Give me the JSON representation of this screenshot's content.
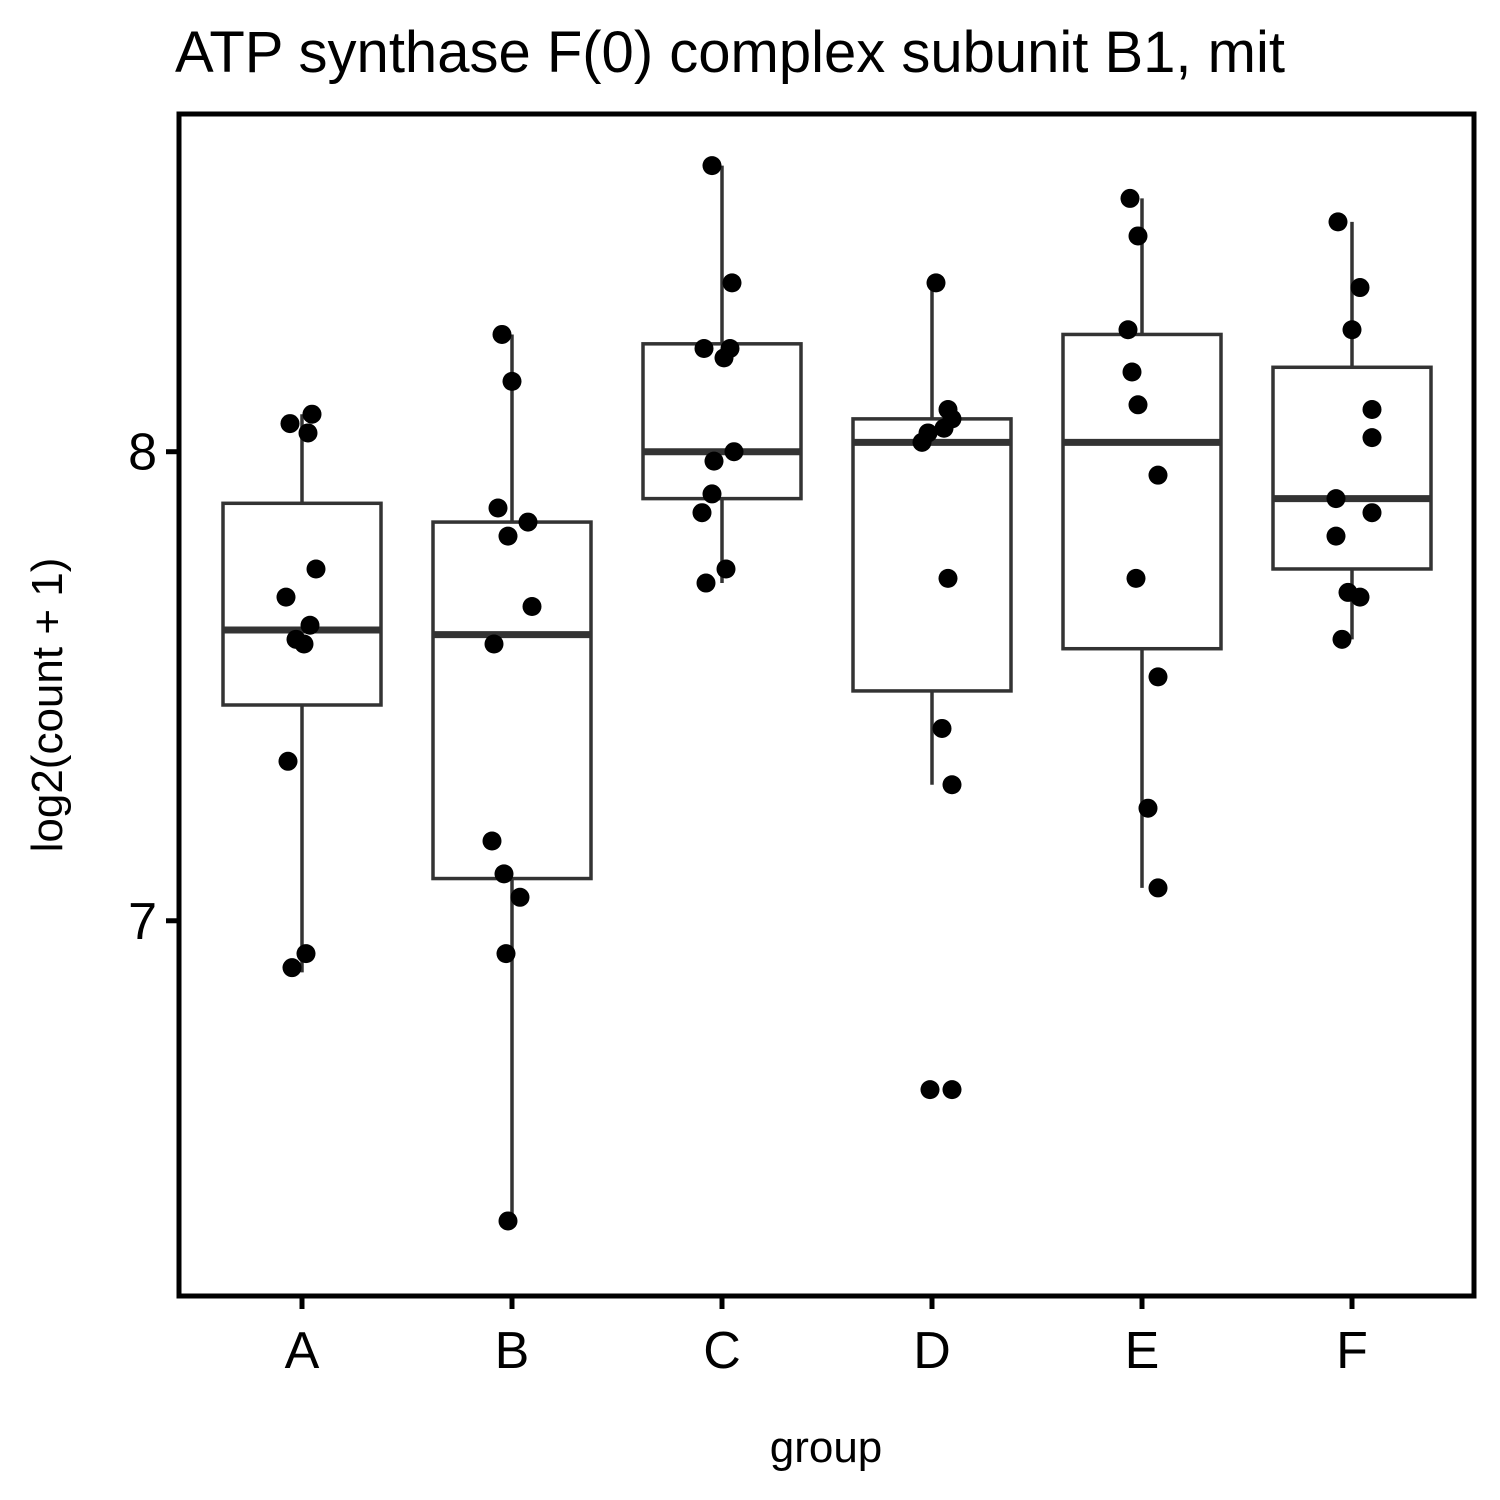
{
  "chart_data": {
    "type": "boxplot",
    "title": "ATP synthase F(0) complex subunit B1, mit",
    "xlabel": "group",
    "ylabel": "log2(count + 1)",
    "ylim": [
      6.2,
      8.72
    ],
    "yticks": [
      7,
      8
    ],
    "grid": false,
    "legend": "none",
    "colors": {
      "box_stroke": "#333333",
      "point": "#000000",
      "frame": "#000000"
    },
    "categories": [
      "A",
      "B",
      "C",
      "D",
      "E",
      "F"
    ],
    "boxes": [
      {
        "group": "A",
        "whisker_low": 6.89,
        "q1": 7.46,
        "median": 7.62,
        "q3": 7.89,
        "whisker_high": 8.08
      },
      {
        "group": "B",
        "whisker_low": 6.36,
        "q1": 7.09,
        "median": 7.61,
        "q3": 7.85,
        "whisker_high": 8.25
      },
      {
        "group": "C",
        "whisker_low": 7.72,
        "q1": 7.9,
        "median": 8.0,
        "q3": 8.23,
        "whisker_high": 8.61
      },
      {
        "group": "D",
        "whisker_low": 7.29,
        "q1": 7.49,
        "median": 8.02,
        "q3": 8.07,
        "whisker_high": 8.36
      },
      {
        "group": "E",
        "whisker_low": 7.07,
        "q1": 7.58,
        "median": 8.02,
        "q3": 8.25,
        "whisker_high": 8.54
      },
      {
        "group": "F",
        "whisker_low": 7.6,
        "q1": 7.75,
        "median": 7.9,
        "q3": 8.18,
        "whisker_high": 8.49
      }
    ],
    "points": [
      {
        "group": "A",
        "values": [
          8.06,
          8.08,
          8.04,
          7.75,
          7.69,
          7.63,
          7.6,
          7.59,
          7.34,
          6.93,
          6.9
        ]
      },
      {
        "group": "B",
        "values": [
          8.25,
          8.15,
          7.88,
          7.85,
          7.82,
          7.67,
          7.59,
          7.17,
          7.1,
          7.05,
          6.93,
          6.36
        ]
      },
      {
        "group": "C",
        "values": [
          8.61,
          8.36,
          8.22,
          8.22,
          8.2,
          8.0,
          7.98,
          7.91,
          7.87,
          7.75,
          7.72
        ]
      },
      {
        "group": "D",
        "values": [
          8.36,
          8.09,
          8.07,
          8.05,
          8.04,
          8.02,
          7.73,
          7.41,
          7.29,
          6.64,
          6.64
        ]
      },
      {
        "group": "E",
        "values": [
          8.54,
          8.46,
          8.26,
          8.17,
          8.1,
          7.95,
          7.73,
          7.52,
          7.24,
          7.07
        ]
      },
      {
        "group": "F",
        "values": [
          8.49,
          8.35,
          8.26,
          8.09,
          8.03,
          7.9,
          7.87,
          7.82,
          7.7,
          7.69,
          7.6
        ]
      }
    ]
  }
}
